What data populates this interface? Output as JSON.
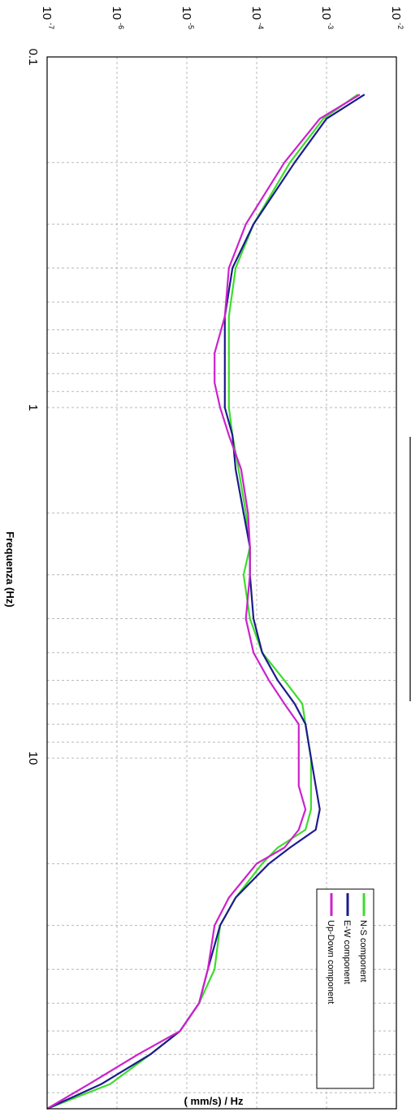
{
  "colors": {
    "N-S": "#3ddc2c",
    "E-W": "#1c1c8c",
    "Up-Down": "#cc22cc",
    "grid": "#b8b8b8",
    "frame": "#000000"
  },
  "chart_data": {
    "type": "line",
    "orientation": "rotated-90-clockwise",
    "xlabel": "Frequenza (Hz)",
    "ylabel": "( mm/s)  / Hz",
    "x_scale": "log",
    "y_scale": "log",
    "xlim": [
      0.1,
      100
    ],
    "ylim": [
      1e-07,
      0.01
    ],
    "x_ticks": [
      {
        "value": 0.1,
        "label": "0.1"
      },
      {
        "value": 1,
        "label": "1"
      },
      {
        "value": 10,
        "label": "10"
      }
    ],
    "y_ticks": [
      {
        "value": 1e-07,
        "base": "10",
        "exp": "-7"
      },
      {
        "value": 1e-06,
        "base": "10",
        "exp": "-6"
      },
      {
        "value": 1e-05,
        "base": "10",
        "exp": "-5"
      },
      {
        "value": 0.0001,
        "base": "10",
        "exp": "-4"
      },
      {
        "value": 0.001,
        "base": "10",
        "exp": "-3"
      },
      {
        "value": 0.01,
        "base": "10",
        "exp": "-2"
      }
    ],
    "grid": true,
    "legend_position": "bottom-right",
    "series": [
      {
        "name": "N-S component",
        "color_key": "N-S",
        "x": [
          0.128,
          0.15,
          0.2,
          0.3,
          0.4,
          0.55,
          0.7,
          0.85,
          1.0,
          1.2,
          1.5,
          2.0,
          2.5,
          3.0,
          4.0,
          5.0,
          6.0,
          7.0,
          8.0,
          10.0,
          12.0,
          14.0,
          16.0,
          18.0,
          20.0,
          25.0,
          30.0,
          40.0,
          50.0,
          60.0,
          70.0,
          85.0,
          100.0
        ],
        "y": [
          0.0028,
          0.0009,
          0.0003,
          9e-05,
          5e-05,
          4e-05,
          4e-05,
          4e-05,
          4e-05,
          4.5e-05,
          5.5e-05,
          7e-05,
          8e-05,
          6.5e-05,
          8e-05,
          0.00012,
          0.00025,
          0.00045,
          0.0005,
          0.0006,
          0.0006,
          0.0006,
          0.0005,
          0.0002,
          0.00012,
          5e-05,
          3e-05,
          2.5e-05,
          1.5e-05,
          8e-06,
          3e-06,
          8e-07,
          1e-07
        ]
      },
      {
        "name": "E-W component",
        "color_key": "E-W",
        "x": [
          0.128,
          0.15,
          0.2,
          0.3,
          0.4,
          0.55,
          0.7,
          0.85,
          1.0,
          1.2,
          1.5,
          2.0,
          2.5,
          3.0,
          4.0,
          5.0,
          6.0,
          7.0,
          8.0,
          10.0,
          12.0,
          14.0,
          16.0,
          18.0,
          20.0,
          25.0,
          30.0,
          40.0,
          50.0,
          60.0,
          70.0,
          85.0,
          100.0
        ],
        "y": [
          0.0035,
          0.001,
          0.00035,
          9e-05,
          4.5e-05,
          3.5e-05,
          3.5e-05,
          3.5e-05,
          3.5e-05,
          4.5e-05,
          5e-05,
          6.5e-05,
          8e-05,
          8e-05,
          9e-05,
          0.00012,
          0.0002,
          0.00035,
          0.0005,
          0.0006,
          0.0007,
          0.0008,
          0.0007,
          0.0003,
          0.00015,
          5e-05,
          3e-05,
          2e-05,
          1.5e-05,
          8e-06,
          3e-06,
          6e-07,
          1e-07
        ]
      },
      {
        "name": "Up-Down component",
        "color_key": "Up-Down",
        "x": [
          0.128,
          0.15,
          0.2,
          0.3,
          0.4,
          0.55,
          0.7,
          0.85,
          1.0,
          1.2,
          1.5,
          2.0,
          2.5,
          3.0,
          4.0,
          5.0,
          6.0,
          7.0,
          8.0,
          10.0,
          12.0,
          14.0,
          16.0,
          18.0,
          20.0,
          25.0,
          30.0,
          40.0,
          50.0,
          60.0,
          70.0,
          85.0,
          100.0
        ],
        "y": [
          0.003,
          0.0008,
          0.00025,
          7e-05,
          4e-05,
          3.5e-05,
          2.5e-05,
          2.5e-05,
          3e-05,
          4e-05,
          6e-05,
          7.5e-05,
          8e-05,
          8e-05,
          7e-05,
          9e-05,
          0.00015,
          0.00025,
          0.0004,
          0.0004,
          0.0004,
          0.0005,
          0.0004,
          0.00025,
          0.0001,
          4e-05,
          2.5e-05,
          2e-05,
          1.5e-05,
          8e-06,
          2e-06,
          4e-07,
          1e-07
        ]
      }
    ]
  }
}
